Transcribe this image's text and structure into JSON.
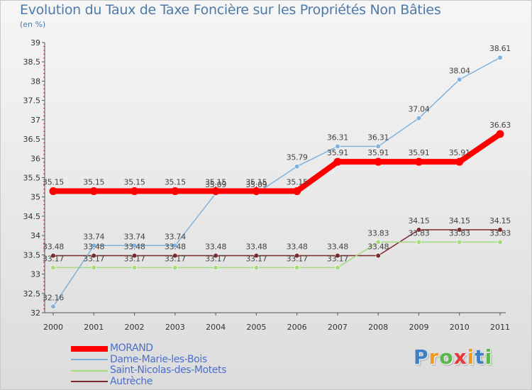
{
  "chart_data": {
    "type": "line",
    "title": "Evolution du Taux de Taxe Foncière sur les Propriétés Non Bâties",
    "ylabel": "(en %)",
    "xlabel": "",
    "x": [
      "2000",
      "2001",
      "2002",
      "2003",
      "2004",
      "2005",
      "2006",
      "2007",
      "2008",
      "2009",
      "2010",
      "2011"
    ],
    "ylim": [
      32,
      39
    ],
    "yticks": [
      "32",
      "32.5",
      "33",
      "33.5",
      "34",
      "34.5",
      "35",
      "35.5",
      "36",
      "36.5",
      "37",
      "37.5",
      "38",
      "38.5",
      "39"
    ],
    "series": [
      {
        "name": "MORAND",
        "color": "#ff0000",
        "values": [
          35.15,
          35.15,
          35.15,
          35.15,
          35.15,
          35.15,
          35.15,
          35.91,
          35.91,
          35.91,
          35.91,
          36.63
        ],
        "labels": [
          "35.15",
          "35.15",
          "35.15",
          "35.15",
          "35.15",
          "35.15",
          "35.15",
          "35.91",
          "35.91",
          "35.91",
          "35.91",
          "36.63"
        ]
      },
      {
        "name": "Dame-Marie-les-Bois",
        "color": "#7fb2de",
        "values": [
          32.16,
          33.74,
          33.74,
          33.74,
          35.09,
          35.09,
          35.79,
          36.31,
          36.31,
          37.04,
          38.04,
          38.61
        ],
        "labels": [
          "32.16",
          "33.74",
          "33.74",
          "33.74",
          "35.09",
          "35.09",
          "35.79",
          "36.31",
          "36.31",
          "37.04",
          "38.04",
          "38.61"
        ]
      },
      {
        "name": "Saint-Nicolas-des-Motets",
        "color": "#a6dc7e",
        "values": [
          33.17,
          33.17,
          33.17,
          33.17,
          33.17,
          33.17,
          33.17,
          33.17,
          33.83,
          33.83,
          33.83,
          33.83
        ],
        "labels": [
          "33.17",
          "33.17",
          "33.17",
          "33.17",
          "33.17",
          "33.17",
          "33.17",
          "33.17",
          "33.83",
          "33.83",
          "33.83",
          "33.83"
        ]
      },
      {
        "name": "Autrèche",
        "color": "#7a2a2a",
        "values": [
          33.48,
          33.48,
          33.48,
          33.48,
          33.48,
          33.48,
          33.48,
          33.48,
          33.48,
          34.15,
          34.15,
          34.15
        ],
        "labels": [
          "33.48",
          "33.48",
          "33.48",
          "33.48",
          "33.48",
          "33.48",
          "33.48",
          "33.48",
          "33.48",
          "34.15",
          "34.15",
          "34.15"
        ]
      }
    ],
    "legend_position": "bottom-left",
    "grid": false
  },
  "logo": {
    "letters": [
      "P",
      "r",
      "o",
      "x",
      "i",
      "t",
      "i"
    ],
    "colors": [
      "#3c7fc4",
      "#f39a1e",
      "#58b84a",
      "#e8363a",
      "#f39a1e",
      "#3c7fc4",
      "#58b84a"
    ]
  }
}
